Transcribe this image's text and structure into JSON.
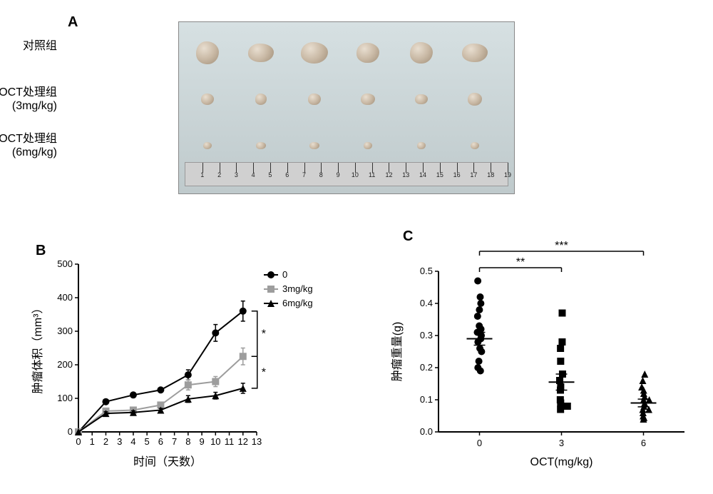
{
  "panelA": {
    "label": "A",
    "rows": [
      {
        "label": "对照组",
        "sizeScale": 1.0
      },
      {
        "label": "OCT处理组\n(3mg/kg)",
        "sizeScale": 0.55
      },
      {
        "label": "OCT处理组\n(6mg/kg)",
        "sizeScale": 0.35
      }
    ],
    "samplesPerRow": 6,
    "rulerMax": 19,
    "tumorColor": "#c9b9a5",
    "bgColor": "#c9d3d5"
  },
  "panelB": {
    "label": "B",
    "xlabel": "时间（天数）",
    "ylabel": "肿瘤体积（mm³）",
    "xlim": [
      0,
      13
    ],
    "ylim": [
      0,
      500
    ],
    "xticks": [
      0,
      1,
      2,
      3,
      4,
      5,
      6,
      7,
      8,
      9,
      10,
      11,
      12,
      13
    ],
    "yticks": [
      0,
      100,
      200,
      300,
      400,
      500
    ],
    "axis_color": "#000000",
    "label_fontsize": 16,
    "tick_fontsize": 13,
    "series": [
      {
        "name": "0",
        "color": "#000000",
        "marker": "circle",
        "x": [
          0,
          2,
          4,
          6,
          8,
          10,
          12
        ],
        "y": [
          0,
          90,
          110,
          125,
          170,
          295,
          360
        ],
        "err": [
          0,
          5,
          5,
          5,
          15,
          25,
          30
        ]
      },
      {
        "name": "3mg/kg",
        "color": "#9d9d9d",
        "marker": "square",
        "x": [
          0,
          2,
          4,
          6,
          8,
          10,
          12
        ],
        "y": [
          0,
          62,
          65,
          80,
          140,
          150,
          225
        ],
        "err": [
          0,
          5,
          5,
          5,
          15,
          15,
          25
        ]
      },
      {
        "name": "6mg/kg",
        "color": "#000000",
        "marker": "triangle",
        "x": [
          0,
          2,
          4,
          6,
          8,
          10,
          12
        ],
        "y": [
          0,
          55,
          58,
          65,
          98,
          108,
          130
        ],
        "err": [
          0,
          5,
          5,
          5,
          10,
          10,
          15
        ]
      }
    ],
    "sig_markers": [
      {
        "between": [
          0,
          1
        ],
        "label": "*"
      },
      {
        "between": [
          1,
          2
        ],
        "label": "*"
      }
    ],
    "line_width": 2,
    "marker_size": 5
  },
  "panelC": {
    "label": "C",
    "xlabel": "OCT(mg/kg)",
    "ylabel": "肿瘤重量(g)",
    "ylim": [
      0.0,
      0.5
    ],
    "yticks": [
      0.0,
      0.1,
      0.2,
      0.3,
      0.4,
      0.5
    ],
    "axis_color": "#000000",
    "label_fontsize": 16,
    "tick_fontsize": 13,
    "groups": [
      {
        "name": "0",
        "marker": "circle",
        "values": [
          0.47,
          0.42,
          0.4,
          0.38,
          0.36,
          0.33,
          0.32,
          0.31,
          0.3,
          0.29,
          0.28,
          0.26,
          0.25,
          0.22,
          0.2,
          0.19
        ],
        "mean": 0.29,
        "sem": 0.02
      },
      {
        "name": "3",
        "marker": "square",
        "values": [
          0.37,
          0.28,
          0.26,
          0.22,
          0.18,
          0.16,
          0.14,
          0.13,
          0.1,
          0.09,
          0.08,
          0.08,
          0.07
        ],
        "mean": 0.155,
        "sem": 0.025
      },
      {
        "name": "6",
        "marker": "triangle",
        "values": [
          0.18,
          0.16,
          0.14,
          0.13,
          0.12,
          0.11,
          0.1,
          0.1,
          0.09,
          0.08,
          0.07,
          0.07,
          0.06,
          0.05,
          0.045,
          0.04
        ],
        "mean": 0.09,
        "sem": 0.012
      }
    ],
    "sig_bars": [
      {
        "from": 0,
        "to": 1,
        "label": "**",
        "y": 0.5
      },
      {
        "from": 0,
        "to": 2,
        "label": "***",
        "y": 0.56
      }
    ],
    "marker_size": 5,
    "marker_color": "#000000"
  }
}
